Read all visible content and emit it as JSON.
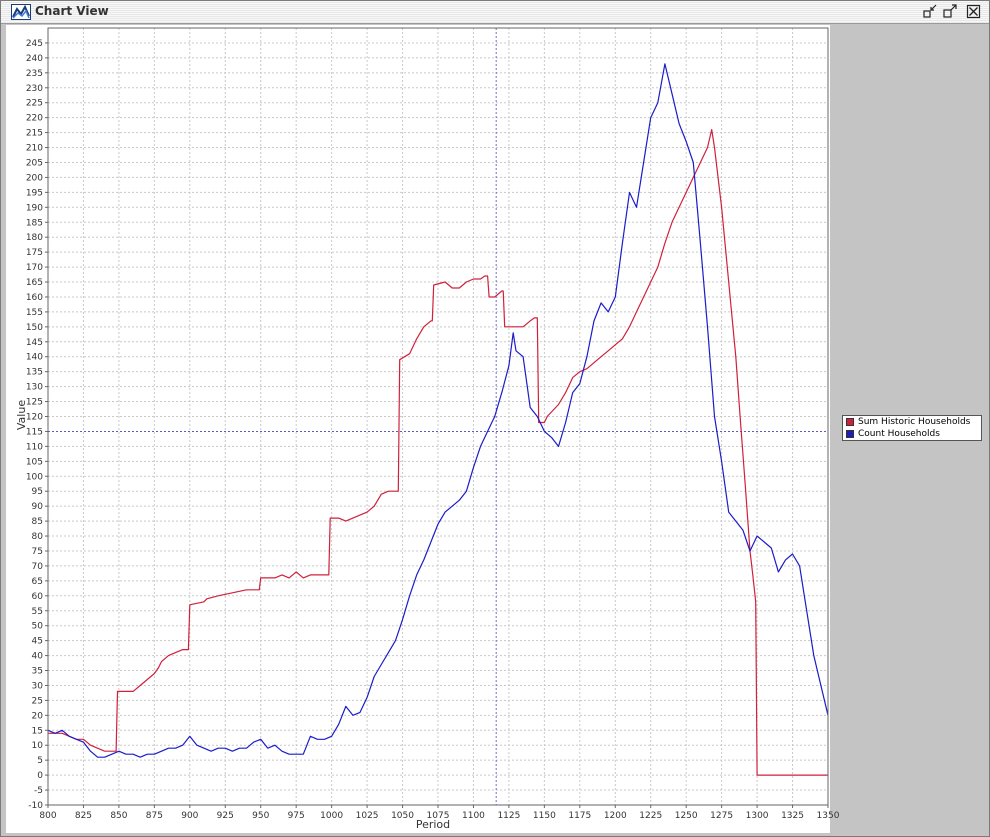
{
  "window": {
    "title": "Chart View",
    "icon": "chart-area-icon",
    "controls": [
      "restore-icon",
      "maximize-icon",
      "close-icon"
    ]
  },
  "chart_data": {
    "type": "line",
    "xlabel": "Period",
    "ylabel": "Value",
    "xlim": [
      800,
      1350
    ],
    "ylim": [
      -10,
      250
    ],
    "xticks": [
      800,
      825,
      850,
      875,
      900,
      925,
      950,
      975,
      1000,
      1025,
      1050,
      1075,
      1100,
      1125,
      1150,
      1175,
      1200,
      1225,
      1250,
      1275,
      1300,
      1325,
      1350
    ],
    "yticks": [
      -10,
      -5,
      0,
      5,
      10,
      15,
      20,
      25,
      30,
      35,
      40,
      45,
      50,
      55,
      60,
      65,
      70,
      75,
      80,
      85,
      90,
      95,
      100,
      105,
      110,
      115,
      120,
      125,
      130,
      135,
      140,
      145,
      150,
      155,
      160,
      165,
      170,
      175,
      180,
      185,
      190,
      195,
      200,
      205,
      210,
      215,
      220,
      225,
      230,
      235,
      240,
      245
    ],
    "grid": true,
    "legend_position": "right",
    "crosshair": {
      "x": 1116,
      "y": 115
    },
    "series": [
      {
        "name": "Sum Historic Households",
        "color": "#d0203c",
        "points": [
          [
            800,
            14
          ],
          [
            810,
            14
          ],
          [
            820,
            12
          ],
          [
            825,
            12
          ],
          [
            830,
            10
          ],
          [
            835,
            9
          ],
          [
            840,
            8
          ],
          [
            847,
            8
          ],
          [
            848,
            8
          ],
          [
            849,
            28
          ],
          [
            860,
            28
          ],
          [
            865,
            30
          ],
          [
            870,
            32
          ],
          [
            875,
            34
          ],
          [
            878,
            36
          ],
          [
            880,
            38
          ],
          [
            885,
            40
          ],
          [
            890,
            41
          ],
          [
            895,
            42
          ],
          [
            899,
            42
          ],
          [
            900,
            57
          ],
          [
            910,
            58
          ],
          [
            912,
            59
          ],
          [
            920,
            60
          ],
          [
            930,
            61
          ],
          [
            940,
            62
          ],
          [
            949,
            62
          ],
          [
            950,
            66
          ],
          [
            960,
            66
          ],
          [
            965,
            67
          ],
          [
            970,
            66
          ],
          [
            975,
            68
          ],
          [
            980,
            66
          ],
          [
            985,
            67
          ],
          [
            990,
            67
          ],
          [
            998,
            67
          ],
          [
            999,
            86
          ],
          [
            1005,
            86
          ],
          [
            1010,
            85
          ],
          [
            1020,
            87
          ],
          [
            1025,
            88
          ],
          [
            1030,
            90
          ],
          [
            1035,
            94
          ],
          [
            1040,
            95
          ],
          [
            1046,
            95
          ],
          [
            1047,
            95
          ],
          [
            1048,
            139
          ],
          [
            1055,
            141
          ],
          [
            1060,
            146
          ],
          [
            1065,
            150
          ],
          [
            1070,
            152
          ],
          [
            1071,
            152
          ],
          [
            1072,
            164
          ],
          [
            1080,
            165
          ],
          [
            1085,
            163
          ],
          [
            1090,
            163
          ],
          [
            1095,
            165
          ],
          [
            1100,
            166
          ],
          [
            1105,
            166
          ],
          [
            1108,
            167
          ],
          [
            1110,
            167
          ],
          [
            1111,
            160
          ],
          [
            1115,
            160
          ],
          [
            1120,
            162
          ],
          [
            1121,
            162
          ],
          [
            1122,
            150
          ],
          [
            1125,
            150
          ],
          [
            1130,
            150
          ],
          [
            1135,
            150
          ],
          [
            1140,
            152
          ],
          [
            1143,
            153
          ],
          [
            1145,
            153
          ],
          [
            1146,
            118
          ],
          [
            1150,
            118
          ],
          [
            1152,
            120
          ],
          [
            1160,
            124
          ],
          [
            1165,
            128
          ],
          [
            1170,
            133
          ],
          [
            1175,
            135
          ],
          [
            1180,
            136
          ],
          [
            1185,
            138
          ],
          [
            1190,
            140
          ],
          [
            1195,
            142
          ],
          [
            1200,
            144
          ],
          [
            1205,
            146
          ],
          [
            1210,
            150
          ],
          [
            1215,
            155
          ],
          [
            1220,
            160
          ],
          [
            1225,
            165
          ],
          [
            1230,
            170
          ],
          [
            1235,
            178
          ],
          [
            1240,
            185
          ],
          [
            1245,
            190
          ],
          [
            1250,
            195
          ],
          [
            1255,
            200
          ],
          [
            1260,
            205
          ],
          [
            1265,
            210
          ],
          [
            1268,
            216
          ],
          [
            1270,
            210
          ],
          [
            1275,
            190
          ],
          [
            1280,
            165
          ],
          [
            1285,
            140
          ],
          [
            1288,
            120
          ],
          [
            1292,
            95
          ],
          [
            1295,
            75
          ],
          [
            1297,
            67
          ],
          [
            1299,
            58
          ],
          [
            1300,
            0
          ],
          [
            1320,
            0
          ],
          [
            1350,
            0
          ]
        ]
      },
      {
        "name": "Count Households",
        "color": "#1c1cc8",
        "points": [
          [
            800,
            15
          ],
          [
            805,
            14
          ],
          [
            810,
            15
          ],
          [
            815,
            13
          ],
          [
            820,
            12
          ],
          [
            825,
            11
          ],
          [
            830,
            8
          ],
          [
            835,
            6
          ],
          [
            840,
            6
          ],
          [
            845,
            7
          ],
          [
            850,
            8
          ],
          [
            855,
            7
          ],
          [
            860,
            7
          ],
          [
            865,
            6
          ],
          [
            870,
            7
          ],
          [
            875,
            7
          ],
          [
            880,
            8
          ],
          [
            885,
            9
          ],
          [
            890,
            9
          ],
          [
            895,
            10
          ],
          [
            900,
            13
          ],
          [
            905,
            10
          ],
          [
            910,
            9
          ],
          [
            915,
            8
          ],
          [
            920,
            9
          ],
          [
            925,
            9
          ],
          [
            930,
            8
          ],
          [
            935,
            9
          ],
          [
            940,
            9
          ],
          [
            945,
            11
          ],
          [
            950,
            12
          ],
          [
            955,
            9
          ],
          [
            960,
            10
          ],
          [
            965,
            8
          ],
          [
            970,
            7
          ],
          [
            975,
            7
          ],
          [
            980,
            7
          ],
          [
            985,
            13
          ],
          [
            990,
            12
          ],
          [
            995,
            12
          ],
          [
            1000,
            13
          ],
          [
            1005,
            17
          ],
          [
            1010,
            23
          ],
          [
            1015,
            20
          ],
          [
            1020,
            21
          ],
          [
            1025,
            26
          ],
          [
            1030,
            33
          ],
          [
            1035,
            37
          ],
          [
            1040,
            41
          ],
          [
            1045,
            45
          ],
          [
            1050,
            52
          ],
          [
            1055,
            60
          ],
          [
            1060,
            67
          ],
          [
            1065,
            72
          ],
          [
            1070,
            78
          ],
          [
            1075,
            84
          ],
          [
            1080,
            88
          ],
          [
            1085,
            90
          ],
          [
            1090,
            92
          ],
          [
            1095,
            95
          ],
          [
            1100,
            103
          ],
          [
            1105,
            110
          ],
          [
            1110,
            115
          ],
          [
            1115,
            120
          ],
          [
            1120,
            128
          ],
          [
            1125,
            137
          ],
          [
            1128,
            148
          ],
          [
            1130,
            142
          ],
          [
            1135,
            140
          ],
          [
            1140,
            123
          ],
          [
            1145,
            120
          ],
          [
            1150,
            115
          ],
          [
            1155,
            113
          ],
          [
            1160,
            110
          ],
          [
            1165,
            118
          ],
          [
            1170,
            128
          ],
          [
            1175,
            131
          ],
          [
            1180,
            140
          ],
          [
            1185,
            152
          ],
          [
            1190,
            158
          ],
          [
            1195,
            155
          ],
          [
            1200,
            160
          ],
          [
            1205,
            178
          ],
          [
            1210,
            195
          ],
          [
            1215,
            190
          ],
          [
            1220,
            205
          ],
          [
            1225,
            220
          ],
          [
            1230,
            225
          ],
          [
            1235,
            238
          ],
          [
            1240,
            228
          ],
          [
            1245,
            218
          ],
          [
            1250,
            212
          ],
          [
            1255,
            205
          ],
          [
            1260,
            178
          ],
          [
            1265,
            150
          ],
          [
            1270,
            120
          ],
          [
            1275,
            105
          ],
          [
            1280,
            88
          ],
          [
            1285,
            85
          ],
          [
            1290,
            82
          ],
          [
            1295,
            75
          ],
          [
            1300,
            80
          ],
          [
            1305,
            78
          ],
          [
            1310,
            76
          ],
          [
            1315,
            68
          ],
          [
            1320,
            72
          ],
          [
            1325,
            74
          ],
          [
            1330,
            70
          ],
          [
            1335,
            55
          ],
          [
            1340,
            40
          ],
          [
            1345,
            30
          ],
          [
            1350,
            20
          ]
        ]
      }
    ]
  }
}
